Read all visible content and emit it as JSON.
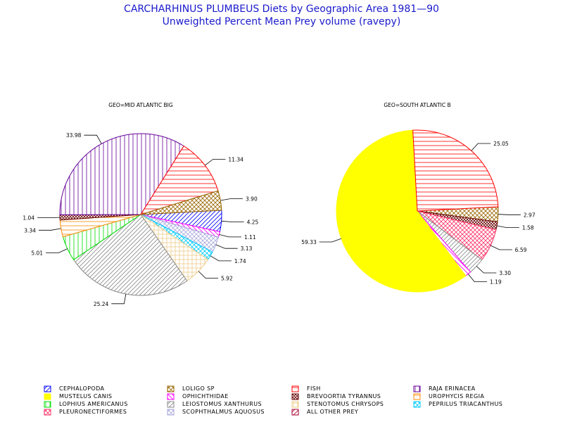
{
  "title": "CARCHARHINUS PLUMBEUS Diets by Geographic Area 1981—90",
  "subtitle": "Unweighted Percent Mean Prey volume (ravepy)",
  "chart_data": [
    {
      "type": "pie",
      "title": "GEO=MID ATLANTIC BIG",
      "slices": [
        {
          "category": "CEPHALOPODA",
          "value": 4.25,
          "label": "4.25"
        },
        {
          "category": "OPHICHTHIDAE",
          "value": 1.11,
          "label": "1.11"
        },
        {
          "category": "SCOPHTHALMUS AQUOSUS",
          "value": 3.13,
          "label": "3.13"
        },
        {
          "category": "PEPRILUS TRIACANTHUS",
          "value": 1.74,
          "label": "1.74"
        },
        {
          "category": "STENOTOMUS CHRYSOPS",
          "value": 5.92,
          "label": "5.92"
        },
        {
          "category": "LEIOSTOMUS XANTHURUS",
          "value": 25.24,
          "label": "25.24"
        },
        {
          "category": "LOPHIUS AMERICANUS",
          "value": 5.01,
          "label": "5.01"
        },
        {
          "category": "UROPHYCIS REGIA",
          "value": 3.34,
          "label": "3.34"
        },
        {
          "category": "BREVOORTIA TYRANNUS",
          "value": 1.04,
          "label": "1.04"
        },
        {
          "category": "RAJA ERINACEA",
          "value": 33.98,
          "label": "33.98"
        },
        {
          "category": "FISH",
          "value": 11.34,
          "label": "11.34"
        },
        {
          "category": "LOLIGO SP",
          "value": 3.9,
          "label": "3.90"
        }
      ]
    },
    {
      "type": "pie",
      "title": "GEO=SOUTH ATLANTIC B",
      "slices": [
        {
          "category": "LOLIGO SP",
          "value": 2.97,
          "label": "2.97"
        },
        {
          "category": "BREVOORTIA TYRANNUS",
          "value": 1.58,
          "label": "1.58"
        },
        {
          "category": "PLEURONECTIFORMES",
          "value": 6.59,
          "label": "6.59"
        },
        {
          "category": "LEIOSTOMUS XANTHURUS",
          "value": 3.3,
          "label": "3.30"
        },
        {
          "category": "OPHICHTHIDAE",
          "value": 1.19,
          "label": "1.19"
        },
        {
          "category": "MUSTELUS CANIS",
          "value": 59.33,
          "label": "59.33"
        },
        {
          "category": "FISH",
          "value": 25.05,
          "label": "25.05"
        }
      ]
    }
  ],
  "legend": [
    {
      "label": "CEPHALOPODA",
      "color": "#0000ff",
      "pattern": "diag-up"
    },
    {
      "label": "LOLIGO SP",
      "color": "#996600",
      "pattern": "cross-x"
    },
    {
      "label": "FISH",
      "color": "#ff0000",
      "pattern": "horiz"
    },
    {
      "label": "RAJA ERINACEA",
      "color": "#660099",
      "pattern": "vert"
    },
    {
      "label": "MUSTELUS CANIS",
      "color": "#ffff00",
      "pattern": "solid"
    },
    {
      "label": "OPHICHTHIDAE",
      "color": "#ff00ff",
      "pattern": "diag-down"
    },
    {
      "label": "BREVOORTIA TYRANNUS",
      "color": "#660000",
      "pattern": "cross-x-dense"
    },
    {
      "label": "UROPHYCIS REGIA",
      "color": "#ff8800",
      "pattern": "horiz"
    },
    {
      "label": "LOPHIUS AMERICANUS",
      "color": "#00dd00",
      "pattern": "vert"
    },
    {
      "label": "LEIOSTOMUS XANTHURUS",
      "color": "#888888",
      "pattern": "diag-up"
    },
    {
      "label": "STENOTOMUS CHRYSOPS",
      "color": "#eecc88",
      "pattern": "grid"
    },
    {
      "label": "PEPRILUS TRIACANTHUS",
      "color": "#00ccff",
      "pattern": "cross-x"
    },
    {
      "label": "PLEURONECTIFORMES",
      "color": "#ff3366",
      "pattern": "cross-x"
    },
    {
      "label": "SCOPHTHALMUS AQUOSUS",
      "color": "#aaaadd",
      "pattern": "cross-x"
    },
    {
      "label": "ALL OTHER PREY",
      "color": "#aa0033",
      "pattern": "diag-up"
    }
  ]
}
